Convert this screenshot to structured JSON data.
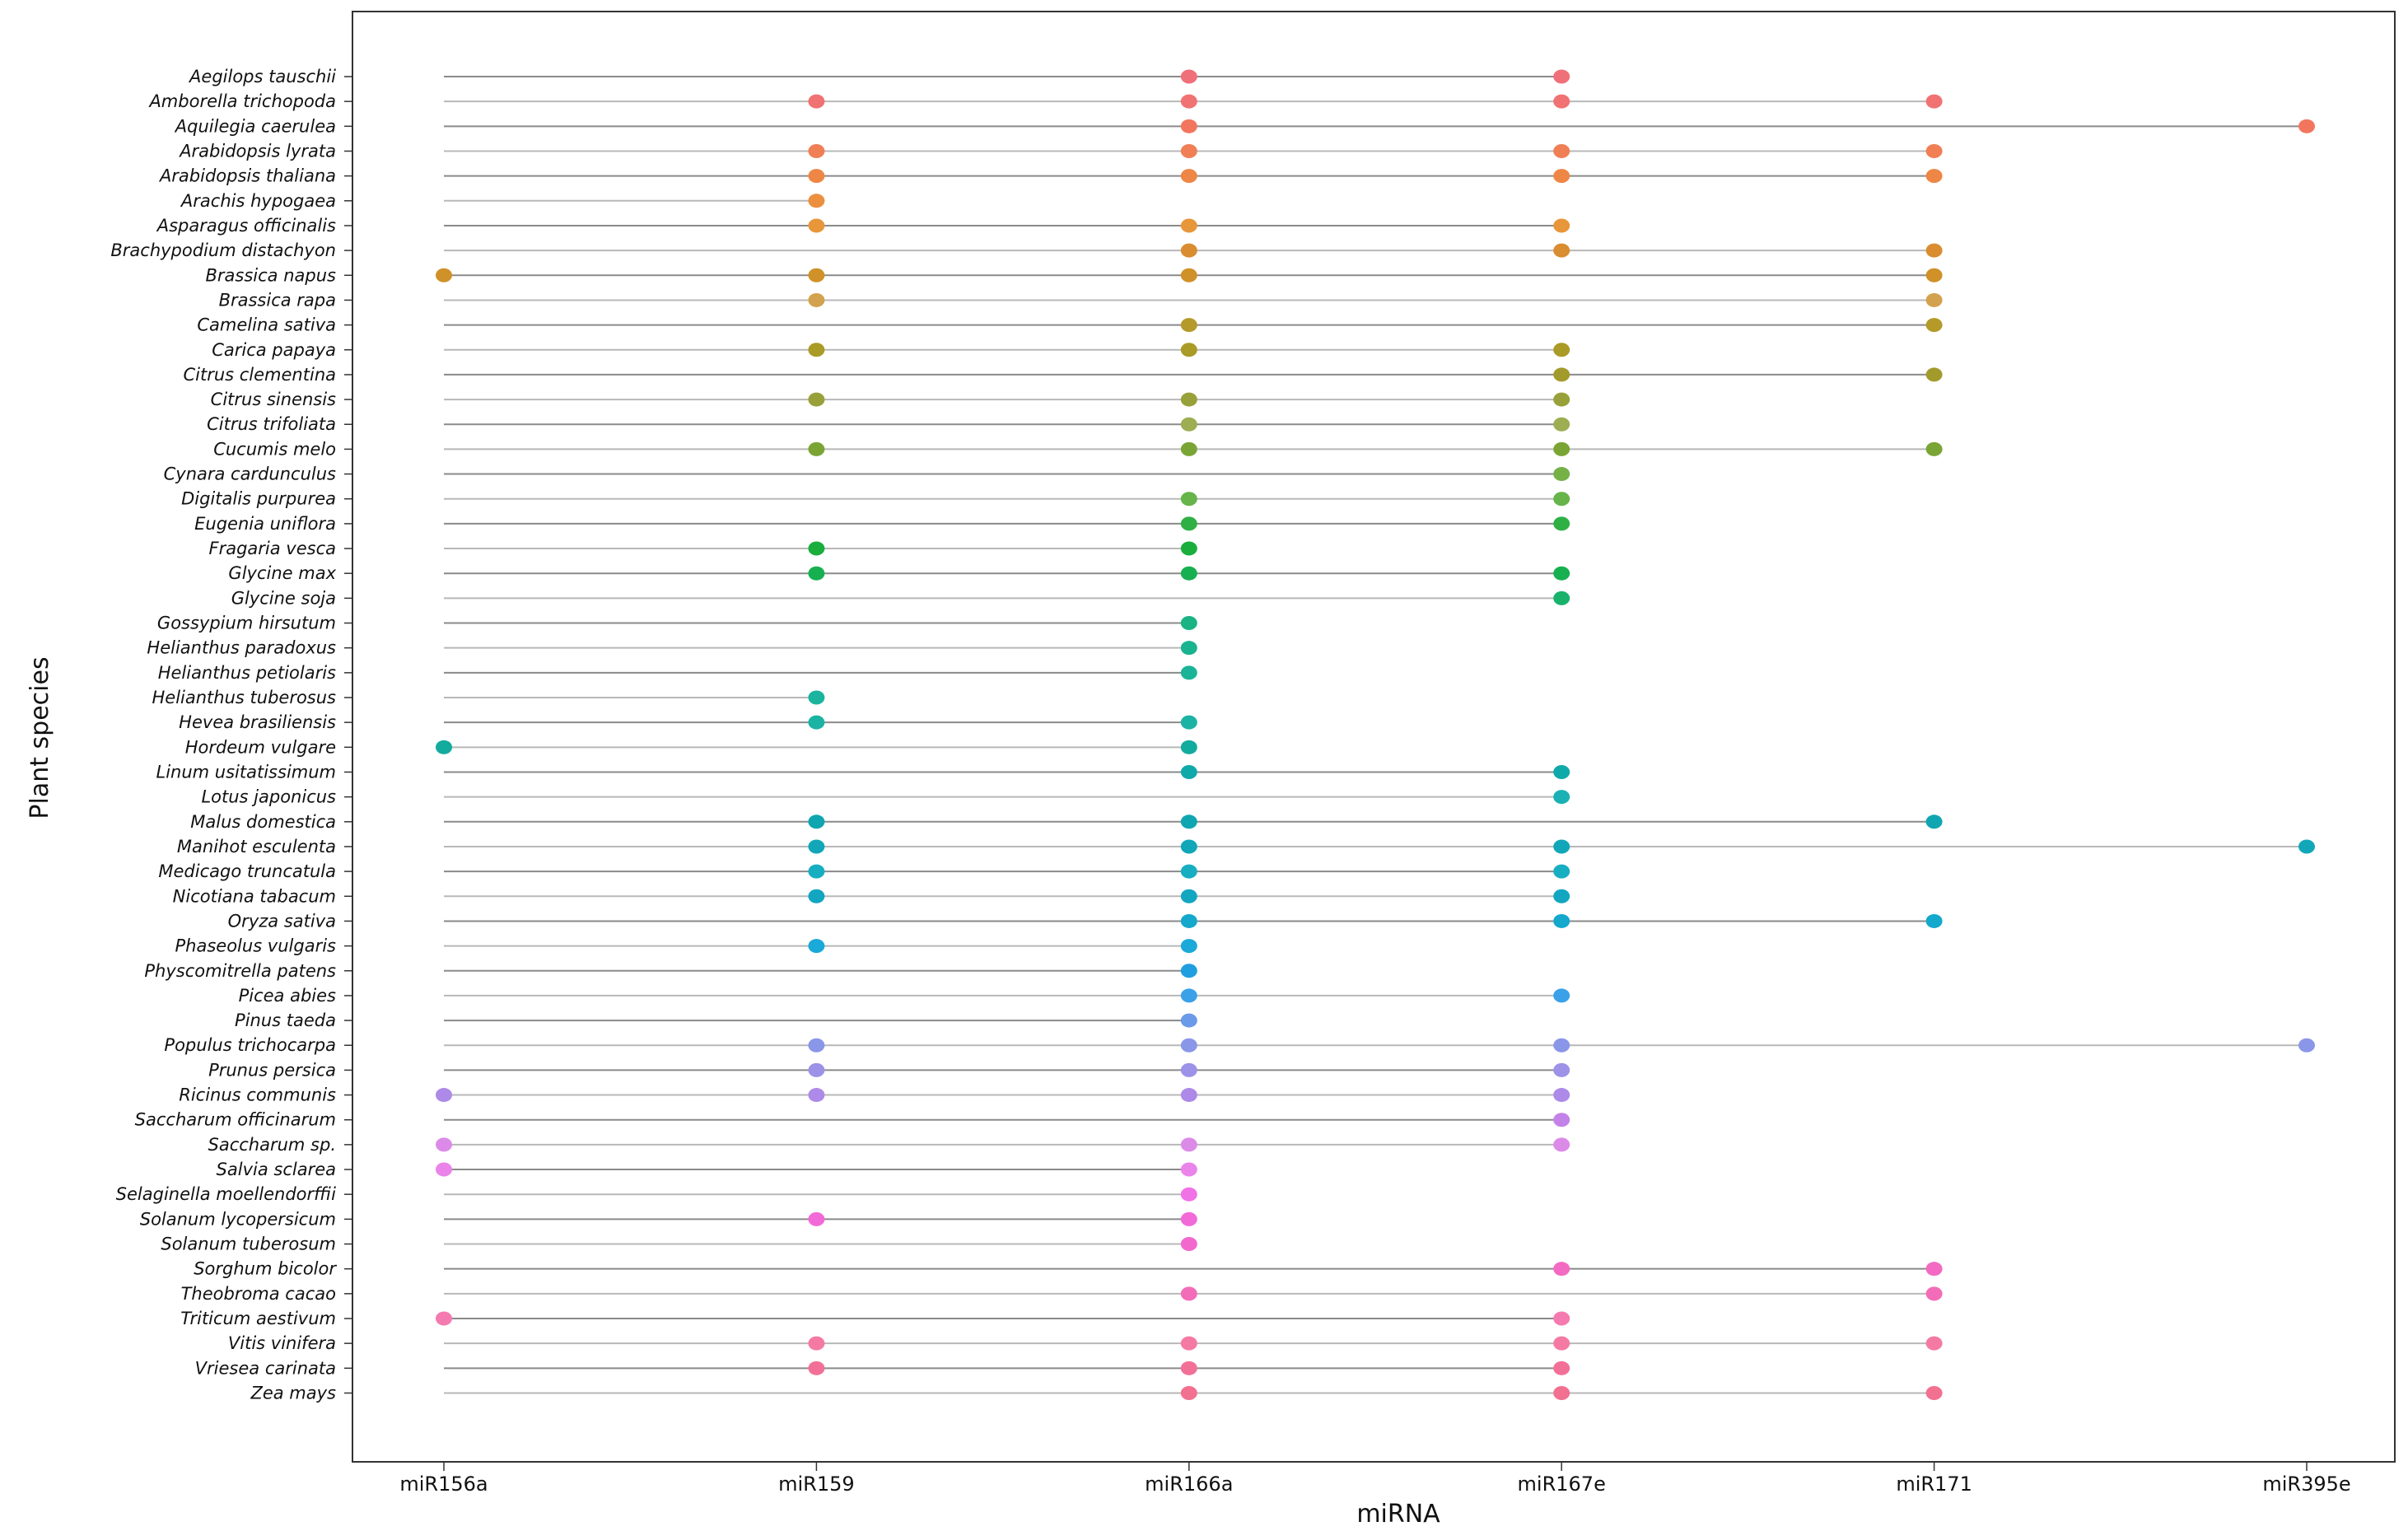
{
  "chart_data": {
    "type": "scatter",
    "xlabel": "miRNA",
    "ylabel": "Plant species",
    "grid": false,
    "categories": [
      "miR156a",
      "miR159",
      "miR166a",
      "miR167e",
      "miR171",
      "miR395e"
    ],
    "species": [
      {
        "name": "Aegilops tauschii",
        "color": "#f0707a",
        "mirnas": [
          "miR166a",
          "miR167e"
        ]
      },
      {
        "name": "Amborella trichopoda",
        "color": "#f17272",
        "mirnas": [
          "miR159",
          "miR166a",
          "miR167e",
          "miR171"
        ]
      },
      {
        "name": "Aquilegia caerulea",
        "color": "#f2765e",
        "mirnas": [
          "miR166a",
          "miR395e"
        ]
      },
      {
        "name": "Arabidopsis lyrata",
        "color": "#f07f55",
        "mirnas": [
          "miR159",
          "miR166a",
          "miR167e",
          "miR171"
        ]
      },
      {
        "name": "Arabidopsis thaliana",
        "color": "#ee8645",
        "mirnas": [
          "miR159",
          "miR166a",
          "miR167e",
          "miR171"
        ]
      },
      {
        "name": "Arachis hypogaea",
        "color": "#ec8f3e",
        "mirnas": [
          "miR159"
        ]
      },
      {
        "name": "Asparagus officinalis",
        "color": "#e8963a",
        "mirnas": [
          "miR159",
          "miR166a",
          "miR167e"
        ]
      },
      {
        "name": "Brachypodium distachyon",
        "color": "#d98c30",
        "mirnas": [
          "miR166a",
          "miR167e",
          "miR171"
        ]
      },
      {
        "name": "Brassica napus",
        "color": "#cf9128",
        "mirnas": [
          "miR156a",
          "miR159",
          "miR166a",
          "miR171"
        ]
      },
      {
        "name": "Brassica rapa",
        "color": "#d3a24e",
        "mirnas": [
          "miR159",
          "miR171"
        ]
      },
      {
        "name": "Camelina sativa",
        "color": "#b59a2a",
        "mirnas": [
          "miR166a",
          "miR171"
        ]
      },
      {
        "name": "Carica papaya",
        "color": "#aa9a26",
        "mirnas": [
          "miR159",
          "miR166a",
          "miR167e"
        ]
      },
      {
        "name": "Citrus clementina",
        "color": "#a39a2c",
        "mirnas": [
          "miR167e",
          "miR171"
        ]
      },
      {
        "name": "Citrus sinensis",
        "color": "#98a03a",
        "mirnas": [
          "miR159",
          "miR166a",
          "miR167e"
        ]
      },
      {
        "name": "Citrus trifoliata",
        "color": "#9cad52",
        "mirnas": [
          "miR166a",
          "miR167e"
        ]
      },
      {
        "name": "Cucumis melo",
        "color": "#7aa534",
        "mirnas": [
          "miR159",
          "miR166a",
          "miR167e",
          "miR171"
        ]
      },
      {
        "name": "Cynara cardunculus",
        "color": "#76b148",
        "mirnas": [
          "miR167e"
        ]
      },
      {
        "name": "Digitalis purpurea",
        "color": "#66b44a",
        "mirnas": [
          "miR166a",
          "miR167e"
        ]
      },
      {
        "name": "Eugenia uniflora",
        "color": "#2fb044",
        "mirnas": [
          "miR166a",
          "miR167e"
        ]
      },
      {
        "name": "Fragaria vesca",
        "color": "#1aae3c",
        "mirnas": [
          "miR159",
          "miR166a"
        ]
      },
      {
        "name": "Glycine max",
        "color": "#17b050",
        "mirnas": [
          "miR159",
          "miR166a",
          "miR167e"
        ]
      },
      {
        "name": "Glycine soja",
        "color": "#19b26a",
        "mirnas": [
          "miR167e"
        ]
      },
      {
        "name": "Gossypium hirsutum",
        "color": "#19b384",
        "mirnas": [
          "miR166a"
        ]
      },
      {
        "name": "Helianthus paradoxus",
        "color": "#1ab38f",
        "mirnas": [
          "miR166a"
        ]
      },
      {
        "name": "Helianthus petiolaris",
        "color": "#1ab499",
        "mirnas": [
          "miR166a"
        ]
      },
      {
        "name": "Helianthus tuberosus",
        "color": "#1bb49f",
        "mirnas": [
          "miR159"
        ]
      },
      {
        "name": "Hevea brasiliensis",
        "color": "#1bb3a4",
        "mirnas": [
          "miR159",
          "miR166a"
        ]
      },
      {
        "name": "Hordeum vulgare",
        "color": "#12ab9e",
        "mirnas": [
          "miR156a",
          "miR166a"
        ]
      },
      {
        "name": "Linum usitatissimum",
        "color": "#10a9a9",
        "mirnas": [
          "miR166a",
          "miR167e"
        ]
      },
      {
        "name": "Lotus japonicus",
        "color": "#1bb1b4",
        "mirnas": [
          "miR167e"
        ]
      },
      {
        "name": "Malus domestica",
        "color": "#0fa6b1",
        "mirnas": [
          "miR159",
          "miR166a",
          "miR171"
        ]
      },
      {
        "name": "Manihot esculenta",
        "color": "#11a7b8",
        "mirnas": [
          "miR159",
          "miR166a",
          "miR167e",
          "miR395e"
        ]
      },
      {
        "name": "Medicago truncatula",
        "color": "#18aec2",
        "mirnas": [
          "miR159",
          "miR166a",
          "miR167e"
        ]
      },
      {
        "name": "Nicotiana tabacum",
        "color": "#12a6c1",
        "mirnas": [
          "miR159",
          "miR166a",
          "miR167e"
        ]
      },
      {
        "name": "Oryza sativa",
        "color": "#13a8cc",
        "mirnas": [
          "miR166a",
          "miR167e",
          "miR171"
        ]
      },
      {
        "name": "Phaseolus vulgaris",
        "color": "#1aa9d8",
        "mirnas": [
          "miR159",
          "miR166a"
        ]
      },
      {
        "name": "Physcomitrella patens",
        "color": "#1f9ee0",
        "mirnas": [
          "miR166a"
        ]
      },
      {
        "name": "Picea abies",
        "color": "#3aa0e8",
        "mirnas": [
          "miR166a",
          "miR167e"
        ]
      },
      {
        "name": "Pinus taeda",
        "color": "#6b9ae8",
        "mirnas": [
          "miR166a"
        ]
      },
      {
        "name": "Populus trichocarpa",
        "color": "#8a96e8",
        "mirnas": [
          "miR159",
          "miR166a",
          "miR167e",
          "miR395e"
        ]
      },
      {
        "name": "Prunus persica",
        "color": "#9c92e8",
        "mirnas": [
          "miR159",
          "miR166a",
          "miR167e"
        ]
      },
      {
        "name": "Ricinus communis",
        "color": "#ad8ae8",
        "mirnas": [
          "miR156a",
          "miR159",
          "miR166a",
          "miR167e"
        ]
      },
      {
        "name": "Saccharum officinarum",
        "color": "#c382e8",
        "mirnas": [
          "miR167e"
        ]
      },
      {
        "name": "Saccharum sp.",
        "color": "#dc8ae8",
        "mirnas": [
          "miR156a",
          "miR166a",
          "miR167e"
        ]
      },
      {
        "name": "Salvia sclarea",
        "color": "#ea84ea",
        "mirnas": [
          "miR156a",
          "miR166a"
        ]
      },
      {
        "name": "Selaginella moellendorffii",
        "color": "#f072e6",
        "mirnas": [
          "miR166a"
        ]
      },
      {
        "name": "Solanum lycopersicum",
        "color": "#f26ad8",
        "mirnas": [
          "miR159",
          "miR166a"
        ]
      },
      {
        "name": "Solanum tuberosum",
        "color": "#f268cc",
        "mirnas": [
          "miR166a"
        ]
      },
      {
        "name": "Sorghum bicolor",
        "color": "#f36ac2",
        "mirnas": [
          "miR167e",
          "miR171"
        ]
      },
      {
        "name": "Theobroma cacao",
        "color": "#f36cb8",
        "mirnas": [
          "miR166a",
          "miR171"
        ]
      },
      {
        "name": "Triticum aestivum",
        "color": "#f47aaf",
        "mirnas": [
          "miR156a",
          "miR167e"
        ]
      },
      {
        "name": "Vitis vinifera",
        "color": "#f47aa4",
        "mirnas": [
          "miR159",
          "miR166a",
          "miR167e",
          "miR171"
        ]
      },
      {
        "name": "Vriesea carinata",
        "color": "#f27098",
        "mirnas": [
          "miR159",
          "miR166a",
          "miR167e"
        ]
      },
      {
        "name": "Zea mays",
        "color": "#f27090",
        "mirnas": [
          "miR166a",
          "miR167e",
          "miR171"
        ]
      }
    ]
  }
}
